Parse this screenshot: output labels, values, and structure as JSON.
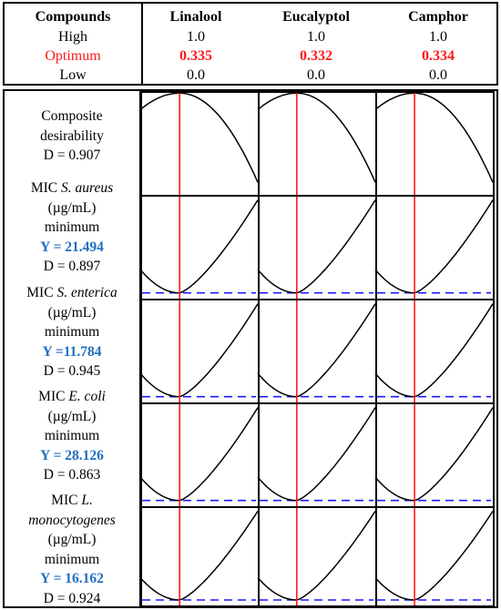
{
  "header": {
    "compounds_label": "Compounds",
    "high_label": "High",
    "optimum_label": "Optimum",
    "low_label": "Low",
    "columns": [
      {
        "name": "Linalool",
        "high": "1.0",
        "optimum": "0.335",
        "low": "0.0"
      },
      {
        "name": "Eucalyptol",
        "high": "1.0",
        "optimum": "0.332",
        "low": "0.0"
      },
      {
        "name": "Camphor",
        "high": "1.0",
        "optimum": "0.334",
        "low": "0.0"
      }
    ]
  },
  "rows": [
    {
      "prefix": "Composite",
      "line2": "desirability",
      "d": "D = 0.907"
    },
    {
      "prefix": "MIC ",
      "organism": "S. aureus",
      "unit": "(µg/mL)",
      "goal": "minimum",
      "y": "Y = 21.494",
      "d": "D = 0.897"
    },
    {
      "prefix": "MIC ",
      "organism": "S. enterica",
      "unit": "(µg/mL)",
      "goal": "minimum",
      "y": "Y =11.784",
      "d": "D = 0.945"
    },
    {
      "prefix": "MIC ",
      "organism": "E. coli",
      "unit": "(µg/mL)",
      "goal": "minimum",
      "y": "Y = 28.126",
      "d": "D = 0.863"
    },
    {
      "prefix": "MIC ",
      "organism_a": "L.",
      "organism_b": "monocytogenes",
      "unit": "(µg/mL)",
      "goal": "minimum",
      "y": "Y = 16.162",
      "d": "D = 0.924"
    }
  ],
  "chart_data": {
    "type": "line",
    "factors": [
      "Linalool",
      "Eucalyptol",
      "Camphor"
    ],
    "x_range": [
      0.0,
      1.0
    ],
    "optimum_x": [
      0.335,
      0.332,
      0.334
    ],
    "responses": [
      {
        "row": "Composite desirability",
        "shape": "concave-down",
        "optimum_value": 0.907
      },
      {
        "row": "MIC S. aureus",
        "shape": "concave-up",
        "optimum_value": 21.494
      },
      {
        "row": "MIC S. enterica",
        "shape": "concave-up",
        "optimum_value": 11.784
      },
      {
        "row": "MIC E. coli",
        "shape": "concave-up",
        "optimum_value": 28.126
      },
      {
        "row": "MIC L. monocytogenes",
        "shape": "concave-up",
        "optimum_value": 16.162
      }
    ],
    "colors": {
      "curve": "#000000",
      "optimum_line": "#ff1a1a",
      "target_line": "#1a1aff"
    }
  }
}
